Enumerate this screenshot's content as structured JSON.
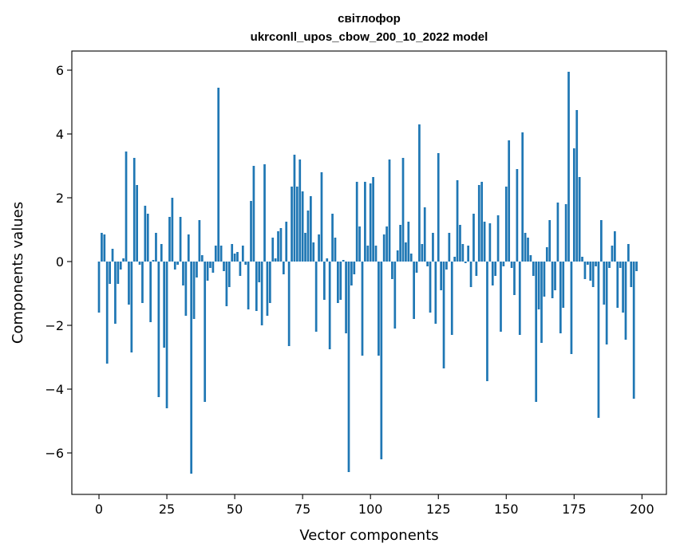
{
  "chart_data": {
    "type": "bar",
    "title": "світлофор",
    "subtitle": "ukrconll_upos_cbow_200_10_2022 model",
    "xlabel": "Vector components",
    "ylabel": "Components values",
    "xlim": [
      -10,
      209
    ],
    "ylim": [
      -7.3,
      6.6
    ],
    "xticks": [
      0,
      25,
      50,
      75,
      100,
      125,
      150,
      175,
      200
    ],
    "yticks": [
      -6,
      -4,
      -2,
      0,
      2,
      4,
      6
    ],
    "ytick_labels": [
      "−6",
      "−4",
      "−2",
      "0",
      "2",
      "4",
      "6"
    ],
    "grid": false,
    "values": [
      -1.6,
      0.9,
      0.85,
      -3.2,
      -0.7,
      0.4,
      -1.95,
      -0.7,
      -0.25,
      0.1,
      3.45,
      -1.35,
      -2.85,
      3.25,
      2.4,
      -0.1,
      -1.3,
      1.75,
      1.5,
      -1.9,
      0.05,
      0.9,
      -4.25,
      0.55,
      -2.7,
      -4.6,
      1.4,
      2.0,
      -0.25,
      -0.1,
      1.4,
      -0.75,
      -1.7,
      0.85,
      -6.65,
      -1.8,
      -0.5,
      1.3,
      0.2,
      -4.4,
      -0.6,
      -0.2,
      -0.35,
      0.5,
      5.45,
      0.5,
      -0.3,
      -1.4,
      -0.8,
      0.55,
      0.25,
      0.3,
      -0.45,
      0.5,
      -0.1,
      -1.5,
      1.9,
      3.0,
      -1.55,
      -0.65,
      -2.0,
      3.05,
      -1.7,
      -1.3,
      0.75,
      0.1,
      0.95,
      1.05,
      -0.4,
      1.25,
      -2.65,
      2.35,
      3.35,
      2.35,
      3.2,
      2.2,
      0.9,
      1.6,
      2.05,
      0.6,
      -2.2,
      0.85,
      2.8,
      -1.2,
      0.1,
      -2.75,
      1.5,
      0.75,
      -1.3,
      -1.2,
      0.05,
      -2.25,
      -6.6,
      -0.75,
      -0.4,
      2.5,
      1.1,
      -2.95,
      2.5,
      0.5,
      2.45,
      2.65,
      0.5,
      -2.95,
      -6.2,
      0.85,
      1.1,
      3.2,
      -0.55,
      -2.1,
      0.35,
      1.15,
      3.25,
      0.6,
      1.25,
      0.25,
      -1.8,
      -0.35,
      4.3,
      0.55,
      1.7,
      -0.15,
      -1.6,
      0.9,
      -1.95,
      3.4,
      -0.9,
      -3.35,
      -0.25,
      0.9,
      -2.3,
      0.15,
      2.55,
      1.15,
      0.55,
      -0.05,
      0.5,
      -0.8,
      1.5,
      -0.45,
      2.4,
      2.5,
      1.25,
      -3.75,
      1.2,
      -0.75,
      -0.45,
      1.45,
      -2.2,
      -0.15,
      2.35,
      3.8,
      -0.2,
      -1.05,
      2.9,
      -2.3,
      4.05,
      0.9,
      0.75,
      0.2,
      -0.45,
      -4.4,
      -1.5,
      -2.55,
      -1.1,
      0.45,
      1.3,
      -1.15,
      -0.9,
      1.85,
      -2.25,
      -1.45,
      1.8,
      5.95,
      -2.9,
      3.55,
      4.75,
      2.65,
      0.15,
      -0.55,
      -0.1,
      -0.6,
      -0.8,
      -0.15,
      -4.9,
      1.3,
      -1.35,
      -2.6,
      -0.2,
      0.5,
      0.95,
      -1.45,
      -0.2,
      -1.6,
      -2.45,
      0.55,
      -0.8,
      -4.3,
      -0.3
    ]
  }
}
